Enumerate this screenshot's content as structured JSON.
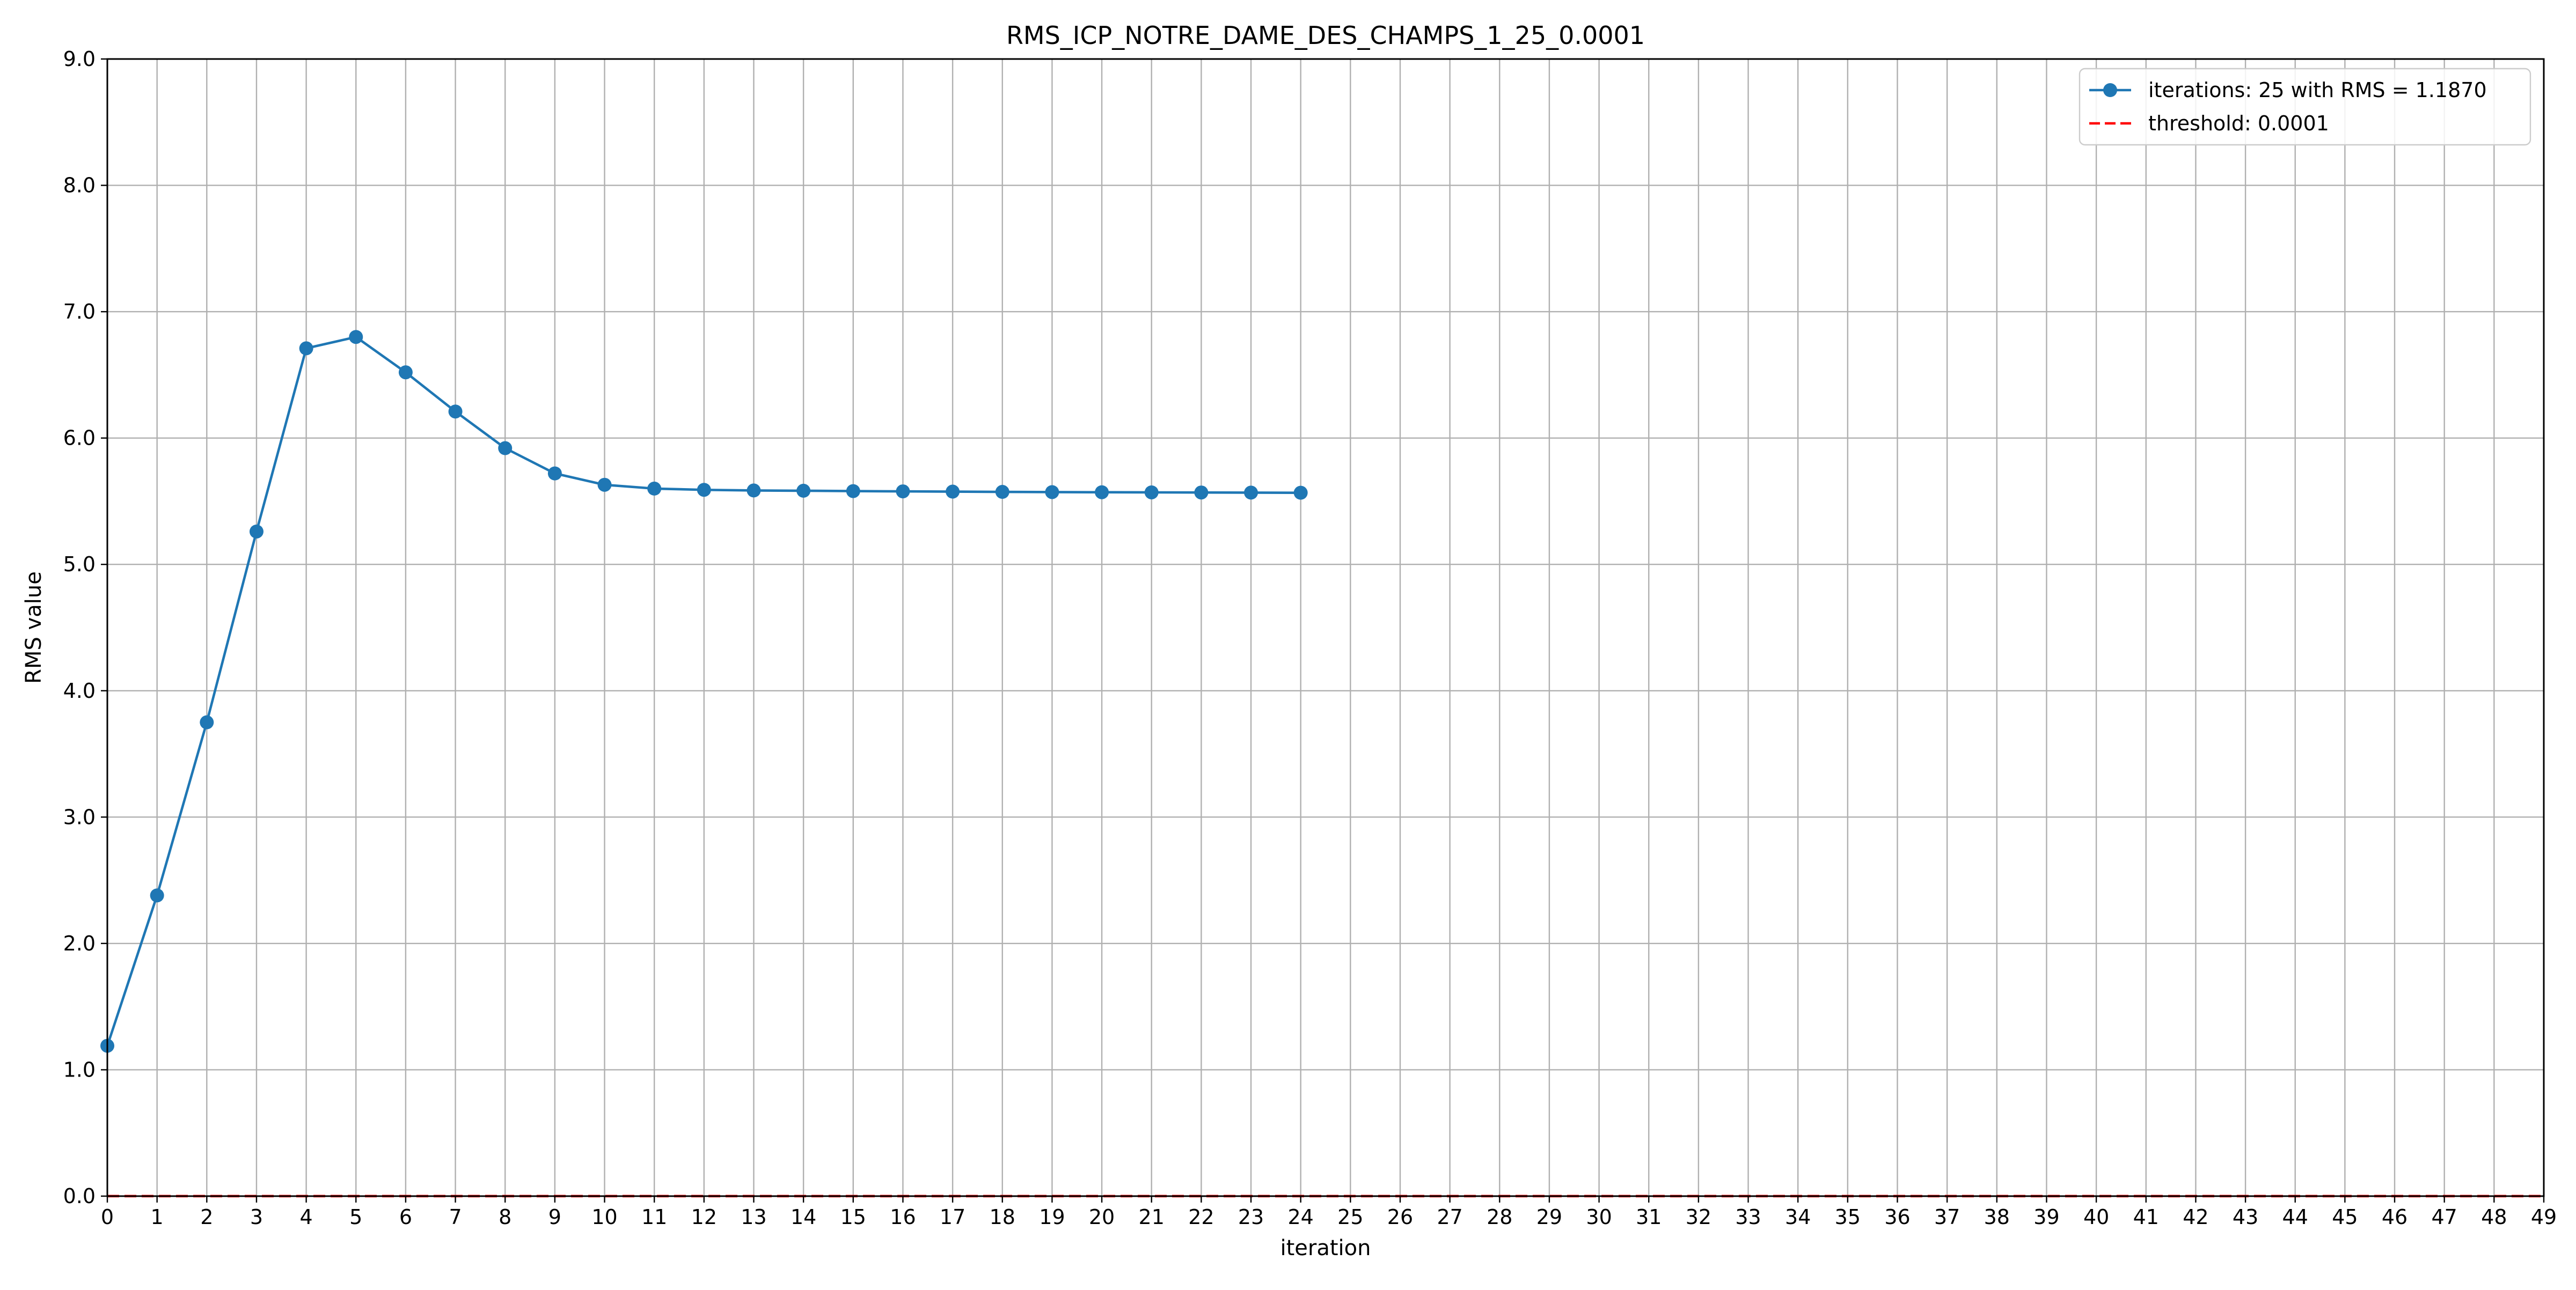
{
  "chart_data": {
    "type": "line",
    "title": "RMS_ICP_NOTRE_DAME_DES_CHAMPS_1_25_0.0001",
    "xlabel": "iteration",
    "ylabel": "RMS value",
    "xlim": [
      0,
      49
    ],
    "ylim": [
      0,
      9
    ],
    "x_ticks": [
      0,
      1,
      2,
      3,
      4,
      5,
      6,
      7,
      8,
      9,
      10,
      11,
      12,
      13,
      14,
      15,
      16,
      17,
      18,
      19,
      20,
      21,
      22,
      23,
      24,
      25,
      26,
      27,
      28,
      29,
      30,
      31,
      32,
      33,
      34,
      35,
      36,
      37,
      38,
      39,
      40,
      41,
      42,
      43,
      44,
      45,
      46,
      47,
      48,
      49
    ],
    "y_ticks": [
      "0.0",
      "1.0",
      "2.0",
      "3.0",
      "4.0",
      "5.0",
      "6.0",
      "7.0",
      "8.0",
      "9.0"
    ],
    "grid": true,
    "legend_position": "top-right",
    "series": [
      {
        "name": "iterations: 25 with RMS = 1.1870",
        "style": "line-with-markers",
        "color": "#1f77b4",
        "x": [
          0,
          1,
          2,
          3,
          4,
          5,
          6,
          7,
          8,
          9,
          10,
          11,
          12,
          13,
          14,
          15,
          16,
          17,
          18,
          19,
          20,
          21,
          22,
          23,
          24
        ],
        "values": [
          1.19,
          2.38,
          3.75,
          5.26,
          6.71,
          6.8,
          6.52,
          6.21,
          5.92,
          5.72,
          5.63,
          5.6,
          5.59,
          5.585,
          5.583,
          5.58,
          5.578,
          5.576,
          5.574,
          5.572,
          5.571,
          5.57,
          5.569,
          5.568,
          5.567
        ]
      },
      {
        "name": "threshold: 0.0001",
        "style": "dashed",
        "color": "#ff0000",
        "x": [
          0,
          49
        ],
        "values": [
          0.0001,
          0.0001
        ]
      }
    ]
  }
}
